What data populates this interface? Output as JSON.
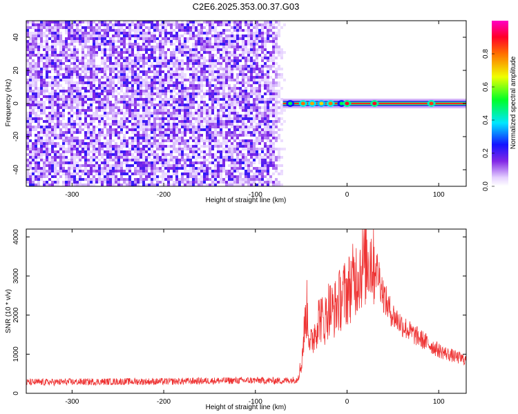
{
  "title": "C2E6.2025.353.00.37.G03",
  "chart_data": [
    {
      "type": "heatmap",
      "xlabel": "Height of straight line (km)",
      "ylabel": "Frequency (Hz)",
      "xlim": [
        -350,
        130
      ],
      "ylim": [
        -50,
        50
      ],
      "xticks": [
        -300,
        -200,
        -100,
        0,
        100
      ],
      "yticks": [
        -40,
        -20,
        0,
        20,
        40
      ],
      "noise_region": {
        "x": [
          -350,
          -66
        ],
        "y": [
          -50,
          50
        ],
        "amplitude": [
          0.0,
          0.2
        ]
      },
      "signal_line": {
        "x": [
          -70,
          130
        ],
        "frequency_hz": 0
      },
      "signal_hotspots": [
        {
          "x": -62,
          "amplitude": 0.5
        },
        {
          "x": -48,
          "amplitude": 0.8
        },
        {
          "x": -38,
          "amplitude": 0.75
        },
        {
          "x": -28,
          "amplitude": 0.7
        },
        {
          "x": -18,
          "amplitude": 0.8
        },
        {
          "x": -6,
          "amplitude": 0.5
        },
        {
          "x": 0,
          "amplitude": 0.9
        },
        {
          "x": 30,
          "amplitude": 0.9
        },
        {
          "x": 92,
          "amplitude": 0.85
        }
      ],
      "colorbar": {
        "label": "Normalized spectral amplitude",
        "range": [
          0.0,
          1.0
        ],
        "ticks": [
          "0.0",
          "0.2",
          "0.4",
          "0.6",
          "0.8"
        ],
        "tick_values": [
          0.0,
          0.2,
          0.4,
          0.6,
          0.8
        ]
      },
      "grid": false
    },
    {
      "type": "line",
      "xlabel": "Height of straight line (km)",
      "ylabel": "SNR (10 * v/v)",
      "xlim": [
        -350,
        130
      ],
      "ylim": [
        0,
        4200
      ],
      "xticks": [
        -300,
        -200,
        -100,
        0,
        100
      ],
      "yticks": [
        0,
        1000,
        2000,
        3000,
        4000
      ],
      "series": [
        {
          "color": "#ee3333",
          "x": [
            -350,
            -300,
            -250,
            -200,
            -150,
            -100,
            -70,
            -55,
            -50,
            -47,
            -44,
            -40,
            -35,
            -30,
            -25,
            -20,
            -15,
            -10,
            -5,
            0,
            5,
            10,
            15,
            20,
            25,
            30,
            35,
            40,
            45,
            50,
            60,
            70,
            80,
            90,
            100,
            110,
            120,
            130
          ],
          "y": [
            280,
            290,
            300,
            300,
            320,
            330,
            320,
            350,
            700,
            1500,
            2200,
            1200,
            1600,
            2000,
            1800,
            2200,
            2100,
            2300,
            2500,
            2600,
            2800,
            3000,
            3200,
            3350,
            3500,
            3300,
            3000,
            2500,
            2200,
            2000,
            1750,
            1550,
            1400,
            1250,
            1100,
            1000,
            920,
            850
          ]
        }
      ],
      "grid": false
    }
  ]
}
